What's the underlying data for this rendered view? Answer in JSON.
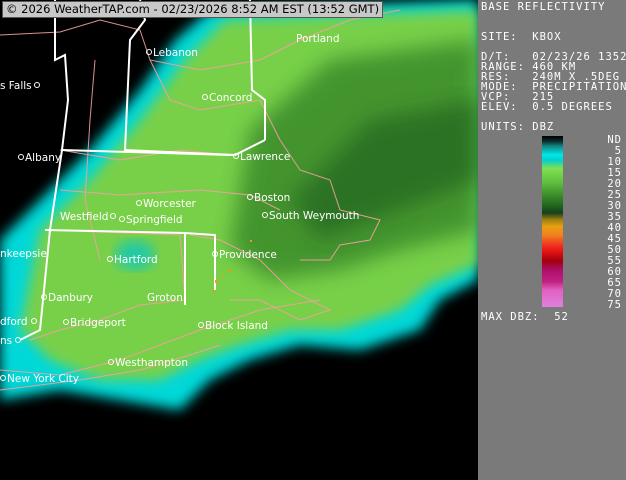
{
  "banner": "© 2026 WeatherTAP.com - 02/23/2026  8:52 AM EST (13:52 GMT)",
  "cities": {
    "lebanon": "Lebanon",
    "portland": "Portland",
    "glens_falls": "s Falls",
    "concord": "Concord",
    "albany": "Albany",
    "lawrence": "Lawrence",
    "boston": "Boston",
    "worcester": "Worcester",
    "westfield": "Westfield",
    "springfield": "Springfield",
    "south_weymouth": "South Weymouth",
    "poughkeepsie": "nkeepsie",
    "hartford": "Hartford",
    "providence": "Providence",
    "danbury": "Danbury",
    "groton": "Groton",
    "bedford": "dford",
    "bridgeport": "Bridgeport",
    "block_island": "Block Island",
    "plains": "ns",
    "westhampton": "Westhampton",
    "new_york_city": "New York City"
  },
  "panel": {
    "title": "BASE REFLECTIVITY",
    "site": "SITE:  KBOX",
    "dt": "D/T:   02/23/26 1352Z",
    "range": "RANGE: 460 KM",
    "res": "RES:   240M X .5DEG",
    "mode": "MODE:  PRECIPITATION",
    "vcp": "VCP:   215",
    "elev": "ELEV:  0.5 DEGREES",
    "units": "UNITS: DBZ",
    "legend": [
      "ND",
      "5",
      "10",
      "15",
      "20",
      "25",
      "30",
      "35",
      "40",
      "45",
      "50",
      "55",
      "60",
      "65",
      "70",
      "75"
    ],
    "max_dbz": "MAX DBZ:  52"
  },
  "colors": {
    "panel_bg": "#7a7a7a",
    "light_rain": "#80e050",
    "drizzle": "#00e8e8",
    "moderate": "#266a20",
    "state_lines": "#ffffff",
    "county_lines": "#f4a0a0"
  }
}
